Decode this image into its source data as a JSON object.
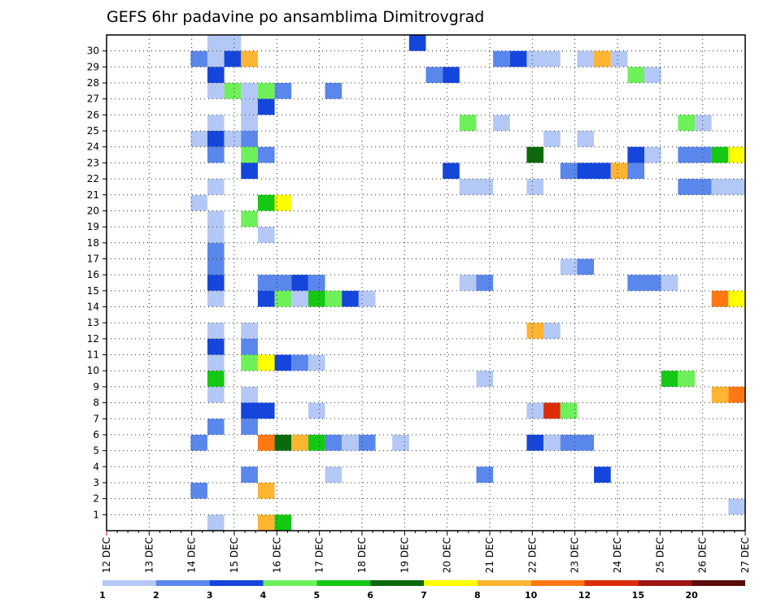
{
  "chart_data": {
    "type": "heatmap",
    "title": "GEFS 6hr padavine po ansamblima Dimitrovgrad",
    "xlabel": "",
    "ylabel": "",
    "x_ticks": [
      "12 DEC",
      "13 DEC",
      "14 DEC",
      "15 DEC",
      "16 DEC",
      "17 DEC",
      "18 DEC",
      "19 DEC",
      "20 DEC",
      "21 DEC",
      "22 DEC",
      "23 DEC",
      "24 DEC",
      "25 DEC",
      "26 DEC",
      "27 DEC"
    ],
    "y_ticks": [
      "1",
      "2",
      "3",
      "4",
      "5",
      "6",
      "7",
      "8",
      "9",
      "10",
      "11",
      "12",
      "13",
      "14",
      "15",
      "16",
      "17",
      "18",
      "19",
      "20",
      "21",
      "22",
      "23",
      "24",
      "25",
      "26",
      "27",
      "28",
      "29",
      "30"
    ],
    "ylim": [
      0,
      30
    ],
    "grid": true,
    "color_levels": [
      "1",
      "2",
      "3",
      "4",
      "5",
      "6",
      "7",
      "8",
      "10",
      "12",
      "15",
      "20"
    ],
    "color_scale": [
      "#b4c8f5",
      "#5a87eb",
      "#1446dc",
      "#6ef05a",
      "#14c814",
      "#0a690a",
      "#ffff00",
      "#ffb432",
      "#ff7814",
      "#dc2d0a",
      "#a01414",
      "#5a0a0a"
    ],
    "cells": [
      {
        "ensemble": 30,
        "col": [
          6,
          7
        ],
        "level": 1
      },
      {
        "ensemble": 30,
        "col": [
          18
        ],
        "level": 3
      },
      {
        "ensemble": 29,
        "col": [
          5
        ],
        "level": 2
      },
      {
        "ensemble": 29,
        "col": [
          6
        ],
        "level": 1
      },
      {
        "ensemble": 29,
        "col": [
          7
        ],
        "level": 3
      },
      {
        "ensemble": 29,
        "col": [
          8
        ],
        "level": 8
      },
      {
        "ensemble": 29,
        "col": [
          23
        ],
        "level": 2
      },
      {
        "ensemble": 29,
        "col": [
          24
        ],
        "level": 3
      },
      {
        "ensemble": 29,
        "col": [
          25,
          26
        ],
        "level": 1
      },
      {
        "ensemble": 29,
        "col": [
          28
        ],
        "level": 1
      },
      {
        "ensemble": 29,
        "col": [
          29
        ],
        "level": 8
      },
      {
        "ensemble": 29,
        "col": [
          30
        ],
        "level": 1
      },
      {
        "ensemble": 28,
        "col": [
          6
        ],
        "level": 3
      },
      {
        "ensemble": 28,
        "col": [
          19
        ],
        "level": 2
      },
      {
        "ensemble": 28,
        "col": [
          20
        ],
        "level": 3
      },
      {
        "ensemble": 28,
        "col": [
          31
        ],
        "level": 4
      },
      {
        "ensemble": 28,
        "col": [
          32
        ],
        "level": 1
      },
      {
        "ensemble": 27,
        "col": [
          6
        ],
        "level": 1
      },
      {
        "ensemble": 27,
        "col": [
          7
        ],
        "level": 4
      },
      {
        "ensemble": 27,
        "col": [
          8
        ],
        "level": 1
      },
      {
        "ensemble": 27,
        "col": [
          9
        ],
        "level": 4
      },
      {
        "ensemble": 27,
        "col": [
          10
        ],
        "level": 2
      },
      {
        "ensemble": 27,
        "col": [
          13
        ],
        "level": 2
      },
      {
        "ensemble": 26,
        "col": [
          8
        ],
        "level": 1
      },
      {
        "ensemble": 26,
        "col": [
          9
        ],
        "level": 3
      },
      {
        "ensemble": 25,
        "col": [
          6
        ],
        "level": 1
      },
      {
        "ensemble": 25,
        "col": [
          8
        ],
        "level": 1
      },
      {
        "ensemble": 25,
        "col": [
          21
        ],
        "level": 4
      },
      {
        "ensemble": 25,
        "col": [
          23
        ],
        "level": 1
      },
      {
        "ensemble": 25,
        "col": [
          34
        ],
        "level": 4
      },
      {
        "ensemble": 25,
        "col": [
          35
        ],
        "level": 1
      },
      {
        "ensemble": 24,
        "col": [
          5
        ],
        "level": 1
      },
      {
        "ensemble": 24,
        "col": [
          6
        ],
        "level": 3
      },
      {
        "ensemble": 24,
        "col": [
          7
        ],
        "level": 1
      },
      {
        "ensemble": 24,
        "col": [
          8
        ],
        "level": 2
      },
      {
        "ensemble": 24,
        "col": [
          26
        ],
        "level": 1
      },
      {
        "ensemble": 24,
        "col": [
          28
        ],
        "level": 1
      },
      {
        "ensemble": 23,
        "col": [
          6
        ],
        "level": 2
      },
      {
        "ensemble": 23,
        "col": [
          8
        ],
        "level": 4
      },
      {
        "ensemble": 23,
        "col": [
          9
        ],
        "level": 2
      },
      {
        "ensemble": 23,
        "col": [
          25
        ],
        "level": 6
      },
      {
        "ensemble": 23,
        "col": [
          31
        ],
        "level": 3
      },
      {
        "ensemble": 23,
        "col": [
          32
        ],
        "level": 1
      },
      {
        "ensemble": 23,
        "col": [
          34,
          35
        ],
        "level": 2
      },
      {
        "ensemble": 23,
        "col": [
          36
        ],
        "level": 5
      },
      {
        "ensemble": 23,
        "col": [
          37
        ],
        "level": 7
      },
      {
        "ensemble": 22,
        "col": [
          8
        ],
        "level": 3
      },
      {
        "ensemble": 22,
        "col": [
          20
        ],
        "level": 3
      },
      {
        "ensemble": 22,
        "col": [
          27
        ],
        "level": 2
      },
      {
        "ensemble": 22,
        "col": [
          28,
          29
        ],
        "level": 3
      },
      {
        "ensemble": 22,
        "col": [
          30
        ],
        "level": 8
      },
      {
        "ensemble": 22,
        "col": [
          31
        ],
        "level": 2
      },
      {
        "ensemble": 21,
        "col": [
          6
        ],
        "level": 1
      },
      {
        "ensemble": 21,
        "col": [
          21,
          22
        ],
        "level": 1
      },
      {
        "ensemble": 21,
        "col": [
          25
        ],
        "level": 1
      },
      {
        "ensemble": 21,
        "col": [
          34,
          35
        ],
        "level": 2
      },
      {
        "ensemble": 21,
        "col": [
          36,
          37
        ],
        "level": 1
      },
      {
        "ensemble": 20,
        "col": [
          5
        ],
        "level": 1
      },
      {
        "ensemble": 20,
        "col": [
          9
        ],
        "level": 5
      },
      {
        "ensemble": 20,
        "col": [
          10
        ],
        "level": 7
      },
      {
        "ensemble": 19,
        "col": [
          6
        ],
        "level": 1
      },
      {
        "ensemble": 19,
        "col": [
          8
        ],
        "level": 4
      },
      {
        "ensemble": 18,
        "col": [
          6
        ],
        "level": 1
      },
      {
        "ensemble": 18,
        "col": [
          9
        ],
        "level": 1
      },
      {
        "ensemble": 17,
        "col": [
          6
        ],
        "level": 2
      },
      {
        "ensemble": 16,
        "col": [
          6
        ],
        "level": 2
      },
      {
        "ensemble": 16,
        "col": [
          27
        ],
        "level": 1
      },
      {
        "ensemble": 16,
        "col": [
          28
        ],
        "level": 2
      },
      {
        "ensemble": 15,
        "col": [
          6
        ],
        "level": 3
      },
      {
        "ensemble": 15,
        "col": [
          9,
          10
        ],
        "level": 2
      },
      {
        "ensemble": 15,
        "col": [
          11
        ],
        "level": 3
      },
      {
        "ensemble": 15,
        "col": [
          12
        ],
        "level": 2
      },
      {
        "ensemble": 15,
        "col": [
          21
        ],
        "level": 1
      },
      {
        "ensemble": 15,
        "col": [
          22
        ],
        "level": 2
      },
      {
        "ensemble": 15,
        "col": [
          31,
          32
        ],
        "level": 2
      },
      {
        "ensemble": 15,
        "col": [
          33
        ],
        "level": 1
      },
      {
        "ensemble": 14,
        "col": [
          6
        ],
        "level": 1
      },
      {
        "ensemble": 14,
        "col": [
          9
        ],
        "level": 3
      },
      {
        "ensemble": 14,
        "col": [
          10
        ],
        "level": 4
      },
      {
        "ensemble": 14,
        "col": [
          11
        ],
        "level": 1
      },
      {
        "ensemble": 14,
        "col": [
          12
        ],
        "level": 5
      },
      {
        "ensemble": 14,
        "col": [
          13
        ],
        "level": 4
      },
      {
        "ensemble": 14,
        "col": [
          14
        ],
        "level": 3
      },
      {
        "ensemble": 14,
        "col": [
          15
        ],
        "level": 1
      },
      {
        "ensemble": 14,
        "col": [
          36
        ],
        "level": 9
      },
      {
        "ensemble": 14,
        "col": [
          37
        ],
        "level": 7
      },
      {
        "ensemble": 12,
        "col": [
          6
        ],
        "level": 1
      },
      {
        "ensemble": 12,
        "col": [
          8
        ],
        "level": 1
      },
      {
        "ensemble": 12,
        "col": [
          25
        ],
        "level": 8
      },
      {
        "ensemble": 12,
        "col": [
          26
        ],
        "level": 1
      },
      {
        "ensemble": 11,
        "col": [
          6
        ],
        "level": 3
      },
      {
        "ensemble": 11,
        "col": [
          8
        ],
        "level": 2
      },
      {
        "ensemble": 10,
        "col": [
          6
        ],
        "level": 1
      },
      {
        "ensemble": 10,
        "col": [
          8
        ],
        "level": 4
      },
      {
        "ensemble": 10,
        "col": [
          9
        ],
        "level": 7
      },
      {
        "ensemble": 10,
        "col": [
          10
        ],
        "level": 3
      },
      {
        "ensemble": 10,
        "col": [
          11
        ],
        "level": 2
      },
      {
        "ensemble": 10,
        "col": [
          12
        ],
        "level": 1
      },
      {
        "ensemble": 9,
        "col": [
          6
        ],
        "level": 5
      },
      {
        "ensemble": 9,
        "col": [
          22
        ],
        "level": 1
      },
      {
        "ensemble": 9,
        "col": [
          33
        ],
        "level": 5
      },
      {
        "ensemble": 9,
        "col": [
          34
        ],
        "level": 4
      },
      {
        "ensemble": 8,
        "col": [
          6
        ],
        "level": 1
      },
      {
        "ensemble": 8,
        "col": [
          8
        ],
        "level": 1
      },
      {
        "ensemble": 8,
        "col": [
          36
        ],
        "level": 8
      },
      {
        "ensemble": 8,
        "col": [
          37
        ],
        "level": 9
      },
      {
        "ensemble": 7,
        "col": [
          8,
          9
        ],
        "level": 3
      },
      {
        "ensemble": 7,
        "col": [
          12
        ],
        "level": 1
      },
      {
        "ensemble": 7,
        "col": [
          25
        ],
        "level": 1
      },
      {
        "ensemble": 7,
        "col": [
          26
        ],
        "level": 10
      },
      {
        "ensemble": 7,
        "col": [
          27
        ],
        "level": 4
      },
      {
        "ensemble": 6,
        "col": [
          6
        ],
        "level": 2
      },
      {
        "ensemble": 6,
        "col": [
          8
        ],
        "level": 2
      },
      {
        "ensemble": 5,
        "col": [
          5
        ],
        "level": 2
      },
      {
        "ensemble": 5,
        "col": [
          9
        ],
        "level": 9
      },
      {
        "ensemble": 5,
        "col": [
          10
        ],
        "level": 6
      },
      {
        "ensemble": 5,
        "col": [
          11
        ],
        "level": 8
      },
      {
        "ensemble": 5,
        "col": [
          12
        ],
        "level": 5
      },
      {
        "ensemble": 5,
        "col": [
          13
        ],
        "level": 2
      },
      {
        "ensemble": 5,
        "col": [
          14
        ],
        "level": 1
      },
      {
        "ensemble": 5,
        "col": [
          15
        ],
        "level": 2
      },
      {
        "ensemble": 5,
        "col": [
          17
        ],
        "level": 1
      },
      {
        "ensemble": 5,
        "col": [
          25
        ],
        "level": 3
      },
      {
        "ensemble": 5,
        "col": [
          26
        ],
        "level": 1
      },
      {
        "ensemble": 5,
        "col": [
          27,
          28
        ],
        "level": 2
      },
      {
        "ensemble": 3,
        "col": [
          8
        ],
        "level": 2
      },
      {
        "ensemble": 3,
        "col": [
          13
        ],
        "level": 1
      },
      {
        "ensemble": 3,
        "col": [
          22
        ],
        "level": 2
      },
      {
        "ensemble": 3,
        "col": [
          29
        ],
        "level": 3
      },
      {
        "ensemble": 2,
        "col": [
          5
        ],
        "level": 2
      },
      {
        "ensemble": 2,
        "col": [
          9
        ],
        "level": 8
      },
      {
        "ensemble": 1,
        "col": [
          37
        ],
        "level": 1
      },
      {
        "ensemble": 0,
        "col": [
          6
        ],
        "level": 1
      },
      {
        "ensemble": 0,
        "col": [
          9
        ],
        "level": 8
      },
      {
        "ensemble": 0,
        "col": [
          10
        ],
        "level": 5
      }
    ]
  }
}
